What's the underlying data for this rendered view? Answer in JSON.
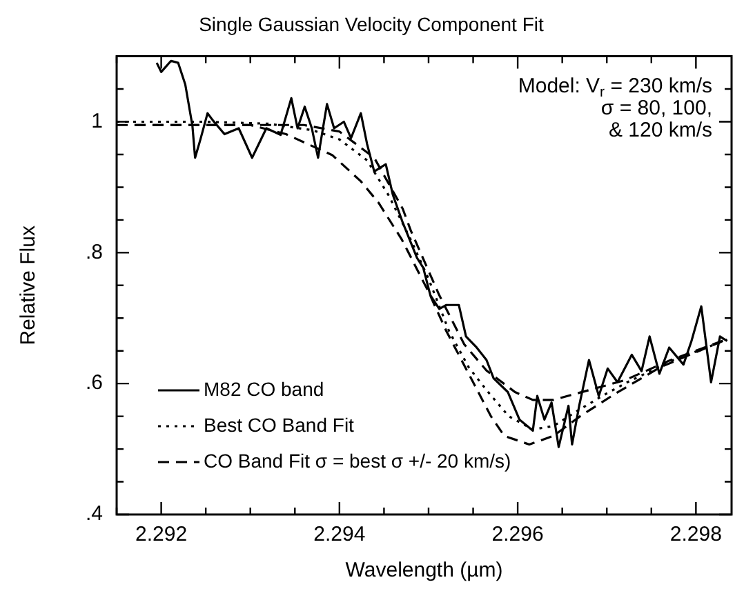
{
  "chart_data": {
    "type": "line",
    "title": "Single Gaussian Velocity Component Fit",
    "xlabel": "Wavelength (µm)",
    "ylabel": "Relative Flux",
    "xlim": [
      2.2915,
      2.2984
    ],
    "ylim": [
      0.4,
      1.1
    ],
    "xticks": [
      {
        "value": 2.2915,
        "label": null
      },
      2.292,
      {
        "value": 2.2925,
        "label": null
      },
      {
        "value": 2.293,
        "label": null
      },
      {
        "value": 2.2935,
        "label": null
      },
      2.294,
      {
        "value": 2.2945,
        "label": null
      },
      {
        "value": 2.295,
        "label": null
      },
      {
        "value": 2.2955,
        "label": null
      },
      2.296,
      {
        "value": 2.2965,
        "label": null
      },
      {
        "value": 2.297,
        "label": null
      },
      {
        "value": 2.2975,
        "label": null
      },
      2.298
    ],
    "yticks": [
      {
        "value": 0.4,
        "label": ".4"
      },
      {
        "value": 0.45,
        "label": null
      },
      {
        "value": 0.5,
        "label": null
      },
      {
        "value": 0.55,
        "label": null
      },
      {
        "value": 0.6,
        "label": ".6"
      },
      {
        "value": 0.65,
        "label": null
      },
      {
        "value": 0.7,
        "label": null
      },
      {
        "value": 0.75,
        "label": null
      },
      {
        "value": 0.8,
        "label": ".8"
      },
      {
        "value": 0.85,
        "label": null
      },
      {
        "value": 0.9,
        "label": null
      },
      {
        "value": 0.95,
        "label": null
      },
      1,
      {
        "value": 1.05,
        "label": null
      }
    ],
    "grid": false,
    "marker": "none",
    "legend": "bottom left",
    "annotations": [
      "Model: V$_{r}$ = 230 km/s",
      "σ = 80, 100,",
      "& 120 km/s"
    ],
    "series": [
      {
        "name": "M82 CO band",
        "color": "#000000",
        "line_style": "solid",
        "x": [
          2.29195,
          2.292,
          2.29211,
          2.29219,
          2.29227,
          2.29235,
          2.29238,
          2.29244,
          2.29252,
          2.29258,
          2.29271,
          2.29287,
          2.29302,
          2.29318,
          2.29334,
          2.29346,
          2.29353,
          2.29361,
          2.29369,
          2.29376,
          2.29386,
          2.29394,
          2.29405,
          2.29413,
          2.29424,
          2.29431,
          2.29439,
          2.29452,
          2.2946,
          2.29471,
          2.29487,
          2.29494,
          2.29502,
          2.29512,
          2.2952,
          2.29534,
          2.29542,
          2.29554,
          2.29565,
          2.29573,
          2.29589,
          2.29602,
          2.29617,
          2.29622,
          2.2963,
          2.29638,
          2.29646,
          2.29657,
          2.29661,
          2.29669,
          2.2968,
          2.29691,
          2.29701,
          2.29712,
          2.29728,
          2.29739,
          2.29748,
          2.29759,
          2.2977,
          2.29786,
          2.29795,
          2.29806,
          2.29817,
          2.29827,
          2.29835
        ],
        "values": [
          1.09,
          1.076,
          1.093,
          1.09,
          1.057,
          0.994,
          0.945,
          0.973,
          1.013,
          1.002,
          0.981,
          0.99,
          0.945,
          0.99,
          0.98,
          1.036,
          0.99,
          1.023,
          0.99,
          0.945,
          1.027,
          0.99,
          1.0,
          0.975,
          1.013,
          0.966,
          0.924,
          0.935,
          0.888,
          0.846,
          0.792,
          0.777,
          0.735,
          0.714,
          0.72,
          0.72,
          0.672,
          0.655,
          0.636,
          0.608,
          0.587,
          0.545,
          0.528,
          0.581,
          0.545,
          0.571,
          0.503,
          0.566,
          0.507,
          0.566,
          0.636,
          0.581,
          0.623,
          0.602,
          0.644,
          0.619,
          0.672,
          0.615,
          0.655,
          0.629,
          0.665,
          0.718,
          0.602,
          0.672,
          0.665
        ]
      },
      {
        "name": "Best CO Band Fit",
        "color": "#000000",
        "line_style": "dotted",
        "x": [
          2.2915,
          2.2925,
          2.2932,
          2.2937,
          2.294,
          2.29431,
          2.29455,
          2.2948,
          2.295,
          2.29523,
          2.29545,
          2.29565,
          2.2959,
          2.29617,
          2.2964,
          2.29669,
          2.297,
          2.29723,
          2.29775,
          2.29835
        ],
        "values": [
          1.0,
          1.0,
          0.997,
          0.987,
          0.973,
          0.941,
          0.888,
          0.82,
          0.76,
          0.68,
          0.625,
          0.59,
          0.55,
          0.53,
          0.535,
          0.56,
          0.585,
          0.602,
          0.636,
          0.667
        ]
      },
      {
        "name": "CO Band Fit σ = best σ +/- 20 km/s)",
        "color": "#000000",
        "line_style": "dashed",
        "x": [
          2.2915,
          2.293,
          2.2934,
          2.29392,
          2.29424,
          2.29444,
          2.2947,
          2.295,
          2.2952,
          2.2955,
          2.2957,
          2.29585,
          2.29613,
          2.2964,
          2.2967,
          2.2971,
          2.2976,
          2.2983
        ],
        "values": [
          0.995,
          0.995,
          0.981,
          0.949,
          0.909,
          0.876,
          0.82,
          0.74,
          0.68,
          0.602,
          0.55,
          0.52,
          0.507,
          0.52,
          0.55,
          0.585,
          0.625,
          0.665
        ]
      },
      {
        "color": "#000000",
        "line_style": "dashed",
        "x": [
          2.2917,
          2.2936,
          2.294,
          2.29439,
          2.29471,
          2.2948,
          2.29512,
          2.2954,
          2.29565,
          2.29597,
          2.29617,
          2.2964,
          2.2968,
          2.2972,
          2.2977,
          2.29835
        ],
        "values": [
          0.995,
          0.995,
          0.985,
          0.945,
          0.867,
          0.834,
          0.735,
          0.66,
          0.62,
          0.587,
          0.575,
          0.575,
          0.59,
          0.605,
          0.635,
          0.668
        ]
      }
    ]
  }
}
